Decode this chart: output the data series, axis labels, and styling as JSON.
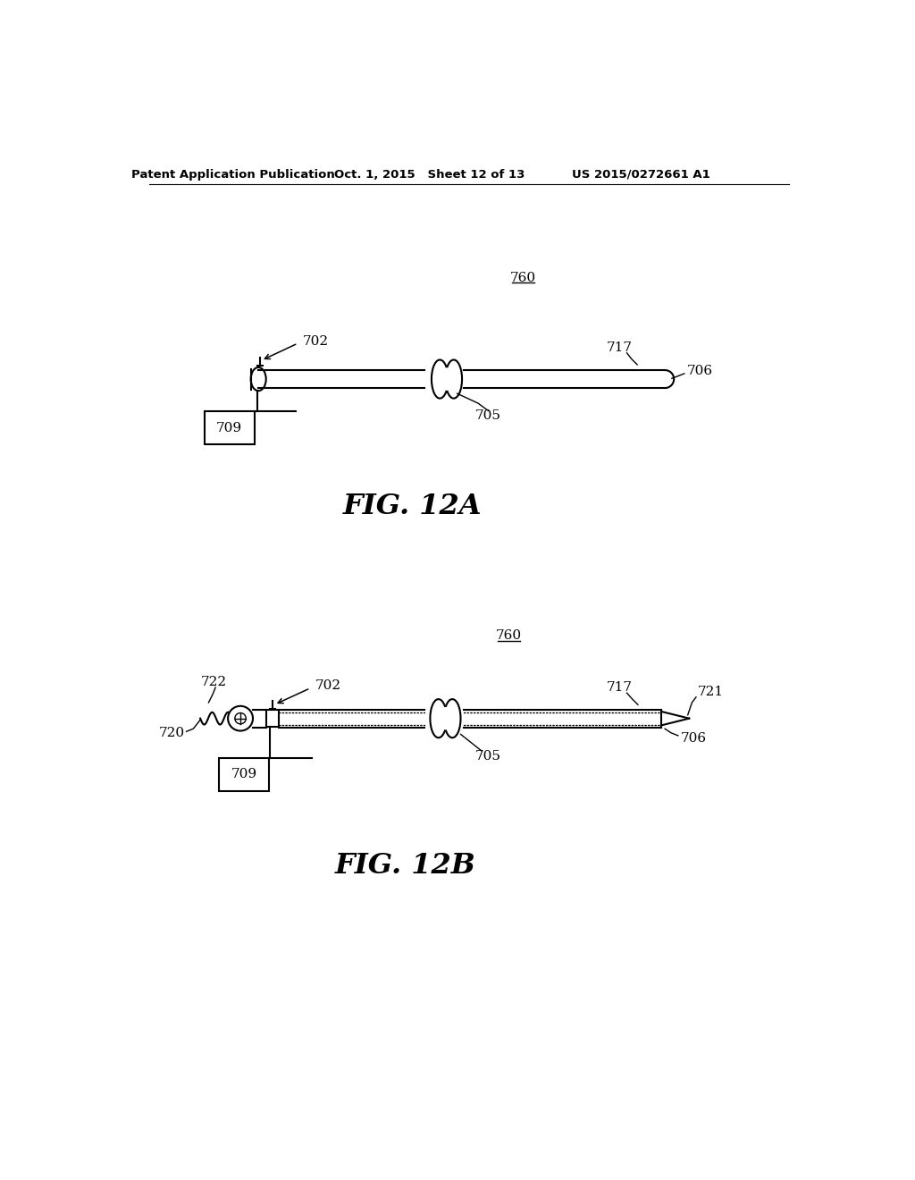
{
  "background_color": "#ffffff",
  "header_left": "Patent Application Publication",
  "header_center": "Oct. 1, 2015   Sheet 12 of 13",
  "header_right": "US 2015/0272661 A1",
  "fig12a_label": "FIG. 12A",
  "fig12b_label": "FIG. 12B"
}
